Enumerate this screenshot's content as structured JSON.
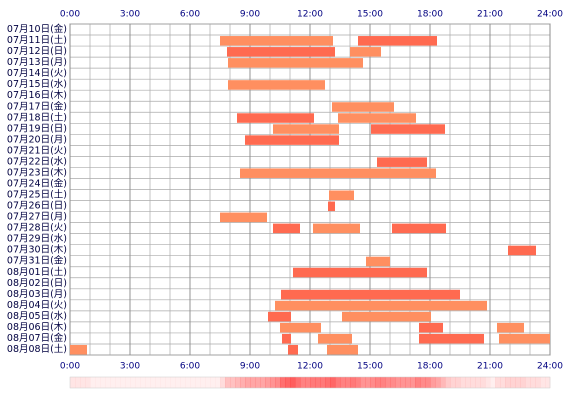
{
  "chart_data": {
    "type": "timeline",
    "categories": [
      "07月10日(金)",
      "07月11日(土)",
      "07月12日(日)",
      "07月13日(月)",
      "07月14日(火)",
      "07月15日(水)",
      "07月16日(木)",
      "07月17日(金)",
      "07月18日(土)",
      "07月19日(日)",
      "07月20日(月)",
      "07月21日(火)",
      "07月22日(水)",
      "07月23日(木)",
      "07月24日(金)",
      "07月25日(土)",
      "07月26日(日)",
      "07月27日(月)",
      "07月28日(火)",
      "07月29日(水)",
      "07月30日(木)",
      "07月31日(金)",
      "08月01日(土)",
      "08月02日(日)",
      "08月03日(月)",
      "08月04日(火)",
      "08月05日(水)",
      "08月06日(木)",
      "08月07日(金)",
      "08月08日(土)"
    ],
    "values": [
      [],
      [
        [
          7.5,
          13.15
        ],
        [
          14.4,
          18.35
        ]
      ],
      [
        [
          7.85,
          13.25
        ],
        [
          14.0,
          15.55
        ]
      ],
      [
        [
          7.9,
          14.65
        ]
      ],
      [],
      [
        [
          7.9,
          12.75
        ]
      ],
      [],
      [
        [
          13.1,
          16.2
        ]
      ],
      [
        [
          8.35,
          12.2
        ],
        [
          13.4,
          17.3
        ]
      ],
      [
        [
          10.15,
          13.45
        ],
        [
          15.05,
          18.75
        ]
      ],
      [
        [
          8.75,
          13.45
        ]
      ],
      [],
      [
        [
          15.35,
          17.85
        ]
      ],
      [
        [
          8.5,
          18.3
        ]
      ],
      [],
      [
        [
          12.95,
          14.2
        ]
      ],
      [
        [
          12.9,
          13.25
        ]
      ],
      [
        [
          7.5,
          9.85
        ]
      ],
      [
        [
          10.15,
          11.5
        ],
        [
          12.15,
          14.5
        ],
        [
          16.1,
          18.8
        ]
      ],
      [],
      [
        [
          21.9,
          23.3
        ]
      ],
      [
        [
          14.8,
          16.0
        ]
      ],
      [
        [
          11.15,
          17.85
        ]
      ],
      [],
      [
        [
          10.55,
          19.5
        ]
      ],
      [
        [
          10.25,
          20.85
        ]
      ],
      [
        [
          9.9,
          11.05
        ],
        [
          13.6,
          18.05
        ]
      ],
      [
        [
          10.5,
          12.55
        ],
        [
          17.45,
          18.65
        ],
        [
          21.35,
          22.7
        ]
      ],
      [
        [
          10.6,
          11.05
        ],
        [
          12.4,
          14.1
        ],
        [
          17.45,
          20.7
        ],
        [
          21.45,
          24
        ]
      ],
      [
        [
          0,
          0.85
        ],
        [
          10.9,
          11.4
        ],
        [
          12.85,
          14.4
        ]
      ]
    ],
    "colors": [
      "#ff6a50",
      "#ff8f60"
    ],
    "xlim": [
      0,
      24
    ],
    "xticks": [
      {
        "value": 0,
        "label": "0:00"
      },
      {
        "value": 3,
        "label": "3:00"
      },
      {
        "value": 6,
        "label": "6:00"
      },
      {
        "value": 9,
        "label": "9:00"
      },
      {
        "value": 12,
        "label": "12:00"
      },
      {
        "value": 15,
        "label": "15:00"
      },
      {
        "value": 18,
        "label": "18:00"
      },
      {
        "value": 21,
        "label": "21:00"
      },
      {
        "value": 24,
        "label": "24:00"
      }
    ],
    "grid": true
  }
}
